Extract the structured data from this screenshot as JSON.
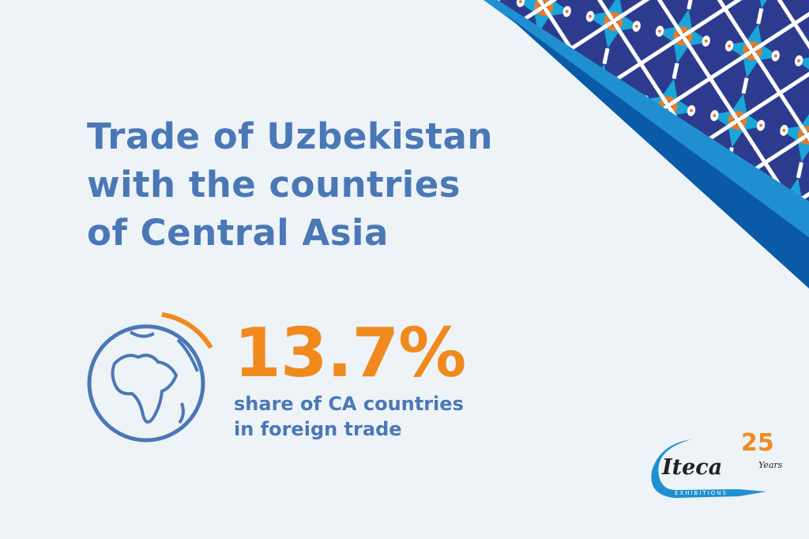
{
  "title": {
    "lines": [
      "Trade of Uzbekistan",
      "with the countries",
      "of Central Asia"
    ]
  },
  "stat": {
    "value": "13.7%",
    "description_lines": [
      "share of CA countries",
      "in foreign trade"
    ],
    "share_percent": 13.7
  },
  "icons": {
    "globe": "globe-icon"
  },
  "logo": {
    "brand": "ITECA",
    "sub": "EXHIBITIONS",
    "anniversary": "25",
    "years": "Years"
  },
  "colors": {
    "title": "#4a78b7",
    "accent": "#f08a1e",
    "background": "#eef3f7",
    "band_light": "#1f8fd0",
    "band_dark": "#0b5aa8",
    "pattern_navy": "#2d3b8e"
  }
}
